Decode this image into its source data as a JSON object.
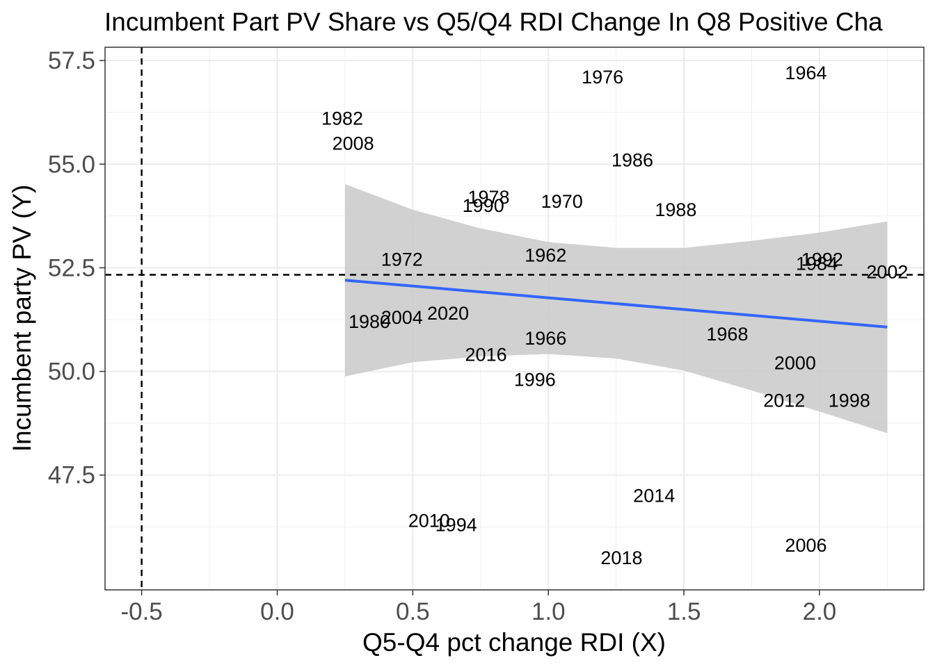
{
  "chart_data": {
    "type": "scatter",
    "title": "Incumbent Part PV Share vs Q5/Q4 RDI Change In Q8 Positive Cha",
    "xlabel": "Q5-Q4 pct change RDI (X)",
    "ylabel": "Incumbent party PV (Y)",
    "xlim": [
      -0.635,
      2.385
    ],
    "ylim": [
      44.73,
      57.82
    ],
    "x_ticks": [
      -0.5,
      0.0,
      0.5,
      1.0,
      1.5,
      2.0
    ],
    "x_tick_labels": [
      "-0.5",
      "0.0",
      "0.5",
      "1.0",
      "1.5",
      "2.0"
    ],
    "y_ticks": [
      47.5,
      50.0,
      52.5,
      55.0,
      57.5
    ],
    "y_tick_labels": [
      "47.5",
      "50.0",
      "52.5",
      "55.0",
      "57.5"
    ],
    "grid": true,
    "marker": "text labels",
    "points": [
      {
        "label": "1964",
        "x": 1.95,
        "y": 57.2
      },
      {
        "label": "1976",
        "x": 1.2,
        "y": 57.1
      },
      {
        "label": "1982",
        "x": 0.24,
        "y": 56.1
      },
      {
        "label": "2008",
        "x": 0.28,
        "y": 55.5
      },
      {
        "label": "1986",
        "x": 1.31,
        "y": 55.1
      },
      {
        "label": "1978",
        "x": 0.78,
        "y": 54.2
      },
      {
        "label": "1990",
        "x": 0.76,
        "y": 54.0
      },
      {
        "label": "1970",
        "x": 1.05,
        "y": 54.1
      },
      {
        "label": "1988",
        "x": 1.47,
        "y": 53.9
      },
      {
        "label": "1972",
        "x": 0.46,
        "y": 52.7
      },
      {
        "label": "1962",
        "x": 0.99,
        "y": 52.8
      },
      {
        "label": "1992",
        "x": 2.01,
        "y": 52.7
      },
      {
        "label": "1984",
        "x": 1.99,
        "y": 52.6
      },
      {
        "label": "2002",
        "x": 2.25,
        "y": 52.4
      },
      {
        "label": "1980",
        "x": 0.34,
        "y": 51.2
      },
      {
        "label": "2004",
        "x": 0.46,
        "y": 51.3
      },
      {
        "label": "2020",
        "x": 0.63,
        "y": 51.4
      },
      {
        "label": "1966",
        "x": 0.99,
        "y": 50.8
      },
      {
        "label": "1968",
        "x": 1.66,
        "y": 50.9
      },
      {
        "label": "2016",
        "x": 0.77,
        "y": 50.4
      },
      {
        "label": "2000",
        "x": 1.91,
        "y": 50.2
      },
      {
        "label": "1996",
        "x": 0.95,
        "y": 49.8
      },
      {
        "label": "2012",
        "x": 1.87,
        "y": 49.3
      },
      {
        "label": "1998",
        "x": 2.11,
        "y": 49.3
      },
      {
        "label": "2014",
        "x": 1.39,
        "y": 47.0
      },
      {
        "label": "2010",
        "x": 0.56,
        "y": 46.4
      },
      {
        "label": "1994",
        "x": 0.66,
        "y": 46.3
      },
      {
        "label": "2006",
        "x": 1.95,
        "y": 45.8
      },
      {
        "label": "2018",
        "x": 1.27,
        "y": 45.5
      }
    ],
    "fit_line": {
      "x": [
        0.25,
        2.25
      ],
      "y": [
        52.2,
        51.07
      ],
      "color": "#3366ff"
    },
    "confidence_band": {
      "x": [
        0.25,
        0.5,
        0.75,
        1.0,
        1.25,
        1.5,
        1.75,
        2.0,
        2.25
      ],
      "upper": [
        54.52,
        53.9,
        53.45,
        53.12,
        52.98,
        52.98,
        53.15,
        53.35,
        53.62
      ],
      "lower": [
        49.88,
        50.22,
        50.36,
        50.42,
        50.31,
        50.02,
        49.54,
        49.03,
        48.51
      ],
      "color": "#cccccc"
    },
    "reference_lines": [
      {
        "axis": "x",
        "value": -0.5,
        "style": "dashed"
      },
      {
        "axis": "y",
        "value": 52.33,
        "style": "dashed"
      }
    ]
  }
}
